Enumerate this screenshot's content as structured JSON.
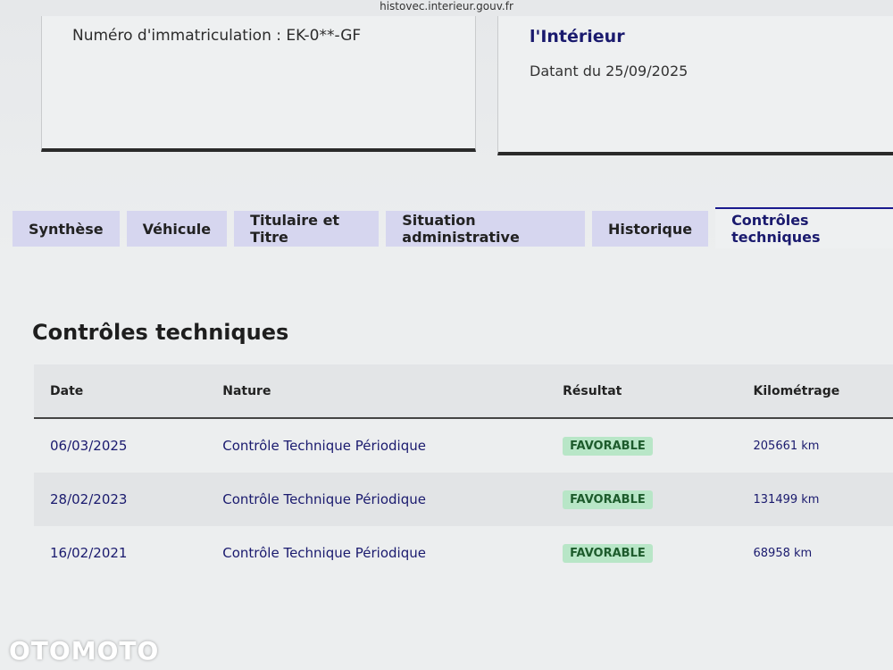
{
  "url": "histovec.interieur.gouv.fr",
  "vehicle_card": {
    "registration": "Numéro d'immatriculation : EK-0**-GF"
  },
  "info_card": {
    "title": "l'Intérieur",
    "date": "Datant du 25/09/2025"
  },
  "tabs": [
    "Synthèse",
    "Véhicule",
    "Titulaire et Titre",
    "Situation administrative",
    "Historique",
    "Contrôles techniques"
  ],
  "active_tab": 5,
  "section_title": "Contrôles techniques",
  "table": {
    "headers": [
      "Date",
      "Nature",
      "Résultat",
      "Kilométrage"
    ],
    "rows": [
      [
        "06/03/2025",
        "Contrôle Technique Périodique",
        "FAVORABLE",
        "205661 km"
      ],
      [
        "28/02/2023",
        "Contrôle Technique Périodique",
        "FAVORABLE",
        "131499 km"
      ],
      [
        "16/02/2021",
        "Contrôle Technique Périodique",
        "FAVORABLE",
        "68958 km"
      ]
    ]
  },
  "watermark": "OTOMOTO"
}
